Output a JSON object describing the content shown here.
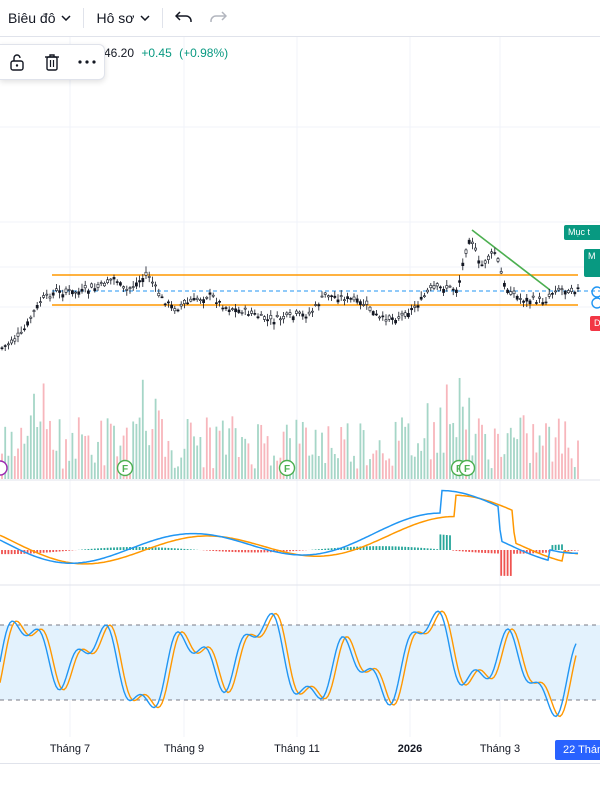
{
  "toolbar": {
    "chart_label": "Biêu đô",
    "profile_label": "Hô sơ",
    "undo_icon": "undo-icon",
    "redo_icon": "redo-icon"
  },
  "drawing_toolbox": {
    "icons": [
      "unlock-icon",
      "trash-icon",
      "more-icon"
    ]
  },
  "legend": {
    "price": "46.20",
    "change": "+0.45",
    "change_pct": "(+0.98%)",
    "change_color": "#089981"
  },
  "right_badges": {
    "target_label": "Mục t",
    "green_badge": "M",
    "red_badge": "D"
  },
  "x_axis": {
    "labels": [
      "Tháng 7",
      "Tháng 9",
      "Tháng 11",
      "2026",
      "Tháng 3"
    ],
    "current_date": "22 Thán"
  },
  "event_markers": [
    "F",
    "F",
    "F",
    "F"
  ],
  "colors": {
    "up": "#089981",
    "down": "#f23645",
    "candle": "#131722",
    "support_resistance": "#ff9800",
    "trendline": "#4caf50",
    "macd": "#2196f3",
    "signal": "#ff9800",
    "stoch_band": "#e3f2fd",
    "accent": "#2962ff"
  }
}
